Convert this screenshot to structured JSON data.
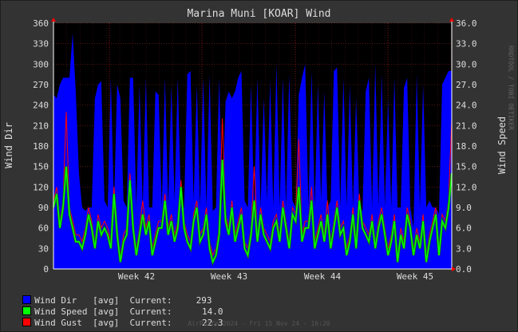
{
  "chart_data": {
    "type": "line",
    "title": "Marina Muni [KOAR] Wind",
    "ylabel_left": "Wind Dir",
    "ylabel_right": "Wind Speed",
    "ylim_left": [
      0,
      360
    ],
    "ylim_right": [
      0,
      36.0
    ],
    "yticks_left": [
      "0",
      "30",
      "60",
      "90",
      "120",
      "150",
      "180",
      "210",
      "240",
      "270",
      "300",
      "330",
      "360"
    ],
    "yticks_right": [
      "0.0",
      "3.0",
      "6.0",
      "9.0",
      "12.0",
      "15.0",
      "18.0",
      "21.0",
      "24.0",
      "27.0",
      "30.0",
      "33.0",
      "36.0"
    ],
    "x_week_labels": [
      "Week 42",
      "Week 43",
      "Week 44",
      "Week 45"
    ],
    "grid": true,
    "series": [
      {
        "name": "Wind Dir",
        "color": "#0000ff",
        "axis": "left",
        "style": "area",
        "values": [
          255,
          250,
          270,
          280,
          280,
          280,
          345,
          260,
          140,
          90,
          85,
          90,
          90,
          250,
          270,
          275,
          100,
          90,
          280,
          90,
          270,
          250,
          100,
          90,
          280,
          280,
          90,
          270,
          90,
          280,
          90,
          90,
          260,
          255,
          90,
          280,
          90,
          270,
          100,
          280,
          95,
          90,
          285,
          290,
          100,
          270,
          90,
          280,
          90,
          285,
          85,
          90,
          280,
          90,
          245,
          260,
          250,
          260,
          280,
          290,
          100,
          90,
          270,
          90,
          280,
          90,
          250,
          100,
          275,
          90,
          300,
          90,
          280,
          90,
          285,
          100,
          90,
          255,
          280,
          300,
          90,
          290,
          90,
          270,
          100,
          260,
          90,
          100,
          290,
          295,
          90,
          280,
          90,
          270,
          90,
          250,
          90,
          85,
          260,
          280,
          90,
          300,
          90,
          285,
          90,
          250,
          90,
          280,
          90,
          90,
          265,
          280,
          90,
          60,
          285,
          90,
          270,
          90,
          100,
          90,
          90,
          80,
          270,
          280,
          290,
          290
        ]
      },
      {
        "name": "Wind Speed",
        "color": "#00ff00",
        "axis": "right",
        "values": [
          9,
          11,
          6,
          9,
          15,
          8,
          6,
          4,
          4,
          3,
          5,
          8,
          6,
          3,
          7,
          5,
          6,
          5,
          3,
          11,
          5,
          1,
          4,
          5,
          13,
          6,
          2,
          5,
          8,
          5,
          7,
          2,
          4,
          6,
          6,
          10,
          5,
          7,
          4,
          6,
          12,
          6,
          4,
          3,
          7,
          9,
          4,
          5,
          8,
          3,
          1,
          2,
          5,
          16,
          7,
          5,
          9,
          4,
          6,
          8,
          3,
          2,
          5,
          10,
          4,
          8,
          5,
          4,
          3,
          6,
          7,
          4,
          9,
          6,
          3,
          8,
          7,
          12,
          4,
          6,
          6,
          10,
          3,
          5,
          7,
          4,
          8,
          3,
          6,
          9,
          5,
          6,
          2,
          4,
          8,
          3,
          10,
          6,
          5,
          4,
          7,
          3,
          6,
          8,
          5,
          2,
          4,
          7,
          1,
          5,
          3,
          8,
          6,
          2,
          5,
          3,
          7,
          1,
          4,
          6,
          8,
          2,
          7,
          6,
          9,
          14
        ]
      },
      {
        "name": "Wind Gust",
        "color": "#ff0000",
        "axis": "right",
        "values": [
          10,
          12,
          7,
          10,
          23,
          9,
          7,
          5,
          5,
          4,
          6,
          9,
          7,
          4,
          8,
          6,
          7,
          6,
          4,
          12,
          6,
          2,
          5,
          6,
          14,
          7,
          3,
          6,
          10,
          6,
          8,
          3,
          5,
          7,
          7,
          11,
          6,
          8,
          5,
          7,
          13,
          7,
          5,
          4,
          8,
          10,
          5,
          6,
          9,
          4,
          2,
          3,
          6,
          22,
          8,
          6,
          10,
          5,
          7,
          9,
          4,
          3,
          6,
          15,
          5,
          9,
          6,
          5,
          4,
          7,
          8,
          5,
          10,
          7,
          4,
          9,
          8,
          19,
          5,
          7,
          7,
          12,
          4,
          6,
          8,
          5,
          10,
          4,
          7,
          10,
          6,
          7,
          3,
          5,
          9,
          4,
          11,
          7,
          6,
          5,
          8,
          4,
          7,
          9,
          6,
          3,
          5,
          8,
          2,
          6,
          4,
          9,
          7,
          3,
          6,
          4,
          8,
          2,
          5,
          7,
          9,
          3,
          8,
          7,
          10,
          22
        ]
      }
    ]
  },
  "legend": [
    {
      "label": "Wind Dir   [avg]",
      "current_label": "Current:",
      "current": "293",
      "color": "#0000ff"
    },
    {
      "label": "Wind Speed [avg]",
      "current_label": "Current:",
      "current": "14.0",
      "color": "#00ff00"
    },
    {
      "label": "Wind Gust  [avg]",
      "current_label": "Current:",
      "current": "22.3",
      "color": "#ff0000"
    }
  ],
  "watermark": "RRDTOOL / TOBI OETIKER",
  "footer": "AirPuffm 2024 - Fri 15 Nov 24 - 16:20"
}
